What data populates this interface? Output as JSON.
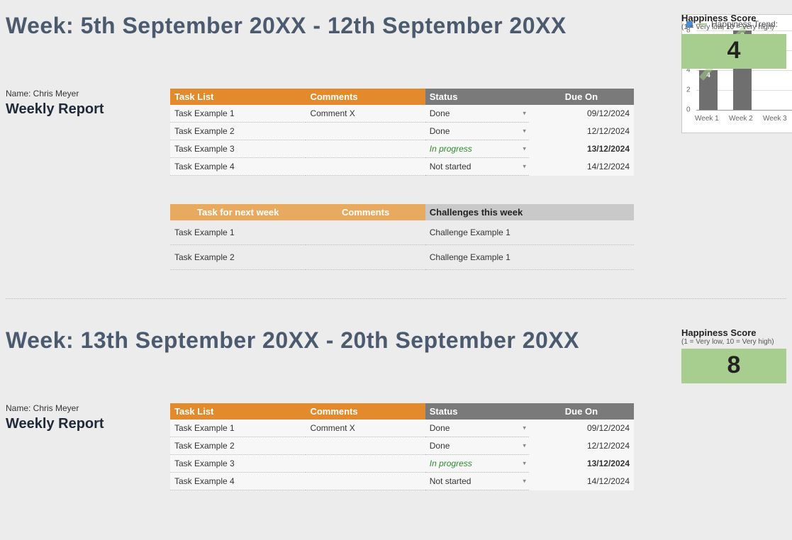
{
  "colors": {
    "background": "#ececec",
    "cell_bg": "#f7f7f7",
    "header_orange": "#e38b2c",
    "header_orange_light": "#e8aa5e",
    "header_grey": "#7a7a7a",
    "header_lightgrey": "#c9c9c9",
    "title_color": "#4b5a6f",
    "happiness_bg": "#a7ce8e",
    "status_inprogress": "#2e8b2e",
    "due_red": "#d23a2a",
    "chart_bar": "#6f6f6f",
    "chart_trend": "#a7ce8e",
    "chart_legend_sq": "#4a8fd8",
    "grid": "#dddddd"
  },
  "chart": {
    "title": "Happiness Trend:",
    "type": "bar",
    "categories": [
      "Week 1",
      "Week 2",
      "Week 3"
    ],
    "values": [
      4,
      8,
      null
    ],
    "ylim": [
      0,
      8
    ],
    "ytick_step": 2,
    "bar_color": "#6f6f6f",
    "trend_color": "#a7ce8e",
    "background_color": "#ffffff",
    "grid_color": "#dddddd"
  },
  "weeks": [
    {
      "title": "Week: 5th September 20XX - 12th September 20XX",
      "name_label": "Name: Chris Meyer",
      "report_label": "Weekly Report",
      "happiness": {
        "label": "Happiness Score",
        "sub": "(1 = Very low, 10 = Very high)",
        "value": "4"
      },
      "task_headers": {
        "task": "Task List",
        "comments": "Comments",
        "status": "Status",
        "due": "Due On"
      },
      "tasks": [
        {
          "task": "Task Example 1",
          "comment": "Comment X",
          "status": "Done",
          "status_class": "",
          "due": "09/12/2024",
          "due_class": ""
        },
        {
          "task": "Task Example 2",
          "comment": "",
          "status": "Done",
          "status_class": "",
          "due": "12/12/2024",
          "due_class": ""
        },
        {
          "task": "Task Example 3",
          "comment": "",
          "status": "In progress",
          "status_class": "status-inprogress",
          "due": "13/12/2024",
          "due_class": "due-red"
        },
        {
          "task": "Task Example 4",
          "comment": "",
          "status": "Not started",
          "status_class": "",
          "due": "14/12/2024",
          "due_class": ""
        }
      ],
      "next_headers": {
        "task": "Task for next week",
        "comments": "Comments",
        "challenges": "Challenges this week"
      },
      "next_rows": [
        {
          "task": "Task Example 1",
          "comment": "",
          "challenge": "Challenge Example 1"
        },
        {
          "task": "Task Example 2",
          "comment": "",
          "challenge": "Challenge Example 1"
        }
      ]
    },
    {
      "title": "Week: 13th September 20XX - 20th September 20XX",
      "name_label": "Name: Chris Meyer",
      "report_label": "Weekly Report",
      "happiness": {
        "label": "Happiness Score",
        "sub": "(1 = Very low, 10 = Very high)",
        "value": "8"
      },
      "task_headers": {
        "task": "Task List",
        "comments": "Comments",
        "status": "Status",
        "due": "Due On"
      },
      "tasks": [
        {
          "task": "Task Example 1",
          "comment": "Comment X",
          "status": "Done",
          "status_class": "",
          "due": "09/12/2024",
          "due_class": ""
        },
        {
          "task": "Task Example 2",
          "comment": "",
          "status": "Done",
          "status_class": "",
          "due": "12/12/2024",
          "due_class": ""
        },
        {
          "task": "Task Example 3",
          "comment": "",
          "status": "In progress",
          "status_class": "status-inprogress",
          "due": "13/12/2024",
          "due_class": "due-red"
        },
        {
          "task": "Task Example 4",
          "comment": "",
          "status": "Not started",
          "status_class": "",
          "due": "14/12/2024",
          "due_class": ""
        }
      ]
    }
  ]
}
